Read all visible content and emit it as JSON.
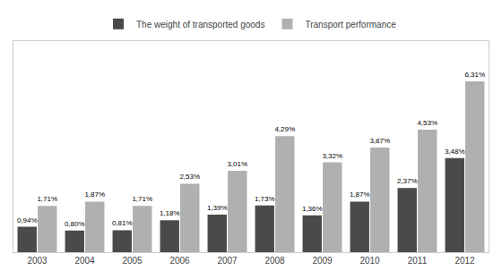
{
  "chart_data": {
    "type": "bar",
    "categories": [
      "2003",
      "2004",
      "2005",
      "2006",
      "2007",
      "2008",
      "2009",
      "2010",
      "2011",
      "2012"
    ],
    "series": [
      {
        "name": "The weight of transported goods",
        "color": "#4a4a4a",
        "values": [
          0.94,
          0.8,
          0.81,
          1.18,
          1.39,
          1.73,
          1.36,
          1.87,
          2.37,
          3.48
        ],
        "value_labels": [
          "0,94%",
          "0,80%",
          "0,81%",
          "1,18%",
          "1,39%",
          "1,73%",
          "1,36%",
          "1,87%",
          "2,37%",
          "3,48%"
        ]
      },
      {
        "name": "Transport performance",
        "color": "#b0b0b0",
        "values": [
          1.71,
          1.87,
          1.71,
          2.53,
          3.01,
          4.29,
          3.32,
          3.87,
          4.53,
          6.31
        ],
        "value_labels": [
          "1,71%",
          "1,87%",
          "1,71%",
          "2,53%",
          "3,01%",
          "4,29%",
          "3,32%",
          "3,87%",
          "4,53%",
          "6,31%"
        ]
      }
    ],
    "ylim": [
      0,
      7.8
    ],
    "grid": false,
    "legend": "top",
    "data_labels": true,
    "tick_labels": "x"
  }
}
